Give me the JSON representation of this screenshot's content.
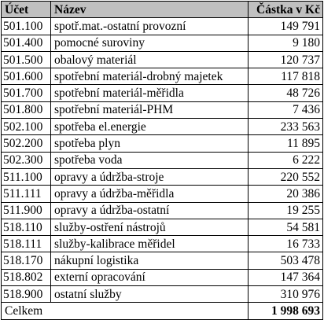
{
  "table": {
    "headers": {
      "account": "Účet",
      "name": "Název",
      "amount": "Částka v Kč"
    },
    "rows": [
      {
        "account": "501.100",
        "name": "spotř.mat.-ostatní provozní",
        "amount": "149 791"
      },
      {
        "account": "501.400",
        "name": "pomocné suroviny",
        "amount": "9 180"
      },
      {
        "account": "501.500",
        "name": "obalový materiál",
        "amount": "120 737"
      },
      {
        "account": "501.600",
        "name": "spotřební materiál-drobný majetek",
        "amount": "117 818"
      },
      {
        "account": "501.700",
        "name": "spotřební materiál-měřidla",
        "amount": "48 726"
      },
      {
        "account": "501.800",
        "name": "spotřební materiál-PHM",
        "amount": "7 436"
      },
      {
        "account": "502.100",
        "name": "spotřeba el.energie",
        "amount": "233 563"
      },
      {
        "account": "502.200",
        "name": "spotřeba plyn",
        "amount": "11 895"
      },
      {
        "account": "502.300",
        "name": "spotřeba voda",
        "amount": "6 222"
      },
      {
        "account": "511.100",
        "name": "opravy a údržba-stroje",
        "amount": "220 552"
      },
      {
        "account": "511.111",
        "name": "opravy a údržba-měřidla",
        "amount": "20 386"
      },
      {
        "account": "511.900",
        "name": "opravy a údržba-ostatní",
        "amount": "19 255"
      },
      {
        "account": "518.110",
        "name": "služby-ostření nástrojů",
        "amount": "54 581"
      },
      {
        "account": "518.111",
        "name": "služby-kalibrace měřidel",
        "amount": "16 733"
      },
      {
        "account": "518.170",
        "name": "nákupní logistika",
        "amount": "503 478"
      },
      {
        "account": "518.802",
        "name": "externí opracování",
        "amount": "147 364"
      },
      {
        "account": "518.900",
        "name": "ostatní služby",
        "amount": "310 976"
      }
    ],
    "footer": {
      "label": "Celkem",
      "amount": "1 998 693"
    }
  }
}
